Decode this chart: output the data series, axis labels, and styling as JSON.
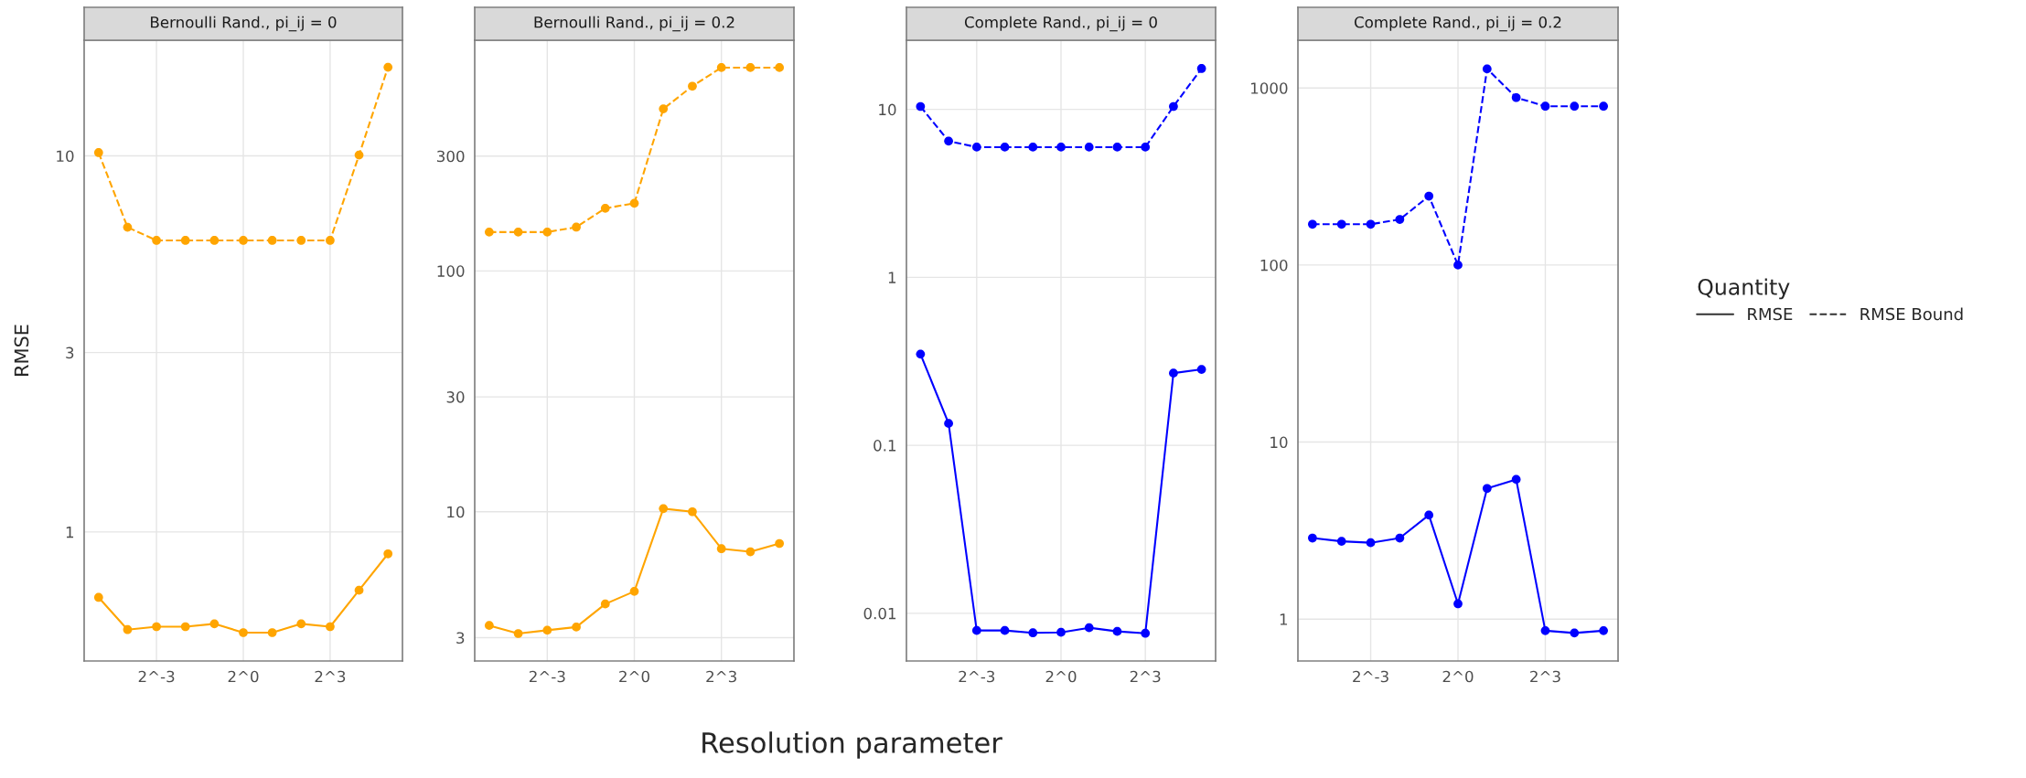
{
  "chart_data": [
    {
      "type": "line",
      "title": "Bernoulli Rand., pi_ij = 0",
      "ylabel": "RMSE",
      "log": "xy",
      "grid": true,
      "marker": "circle",
      "legend": false,
      "x": [
        0.03125,
        0.0625,
        0.125,
        0.25,
        0.5,
        1,
        2,
        4,
        8,
        16,
        32
      ],
      "xlim": [
        0.0221,
        45.25
      ],
      "xticks": [
        {
          "value": 0.125,
          "label": "2^-3"
        },
        {
          "value": 1,
          "label": "2^0"
        },
        {
          "value": 8,
          "label": "2^3"
        }
      ],
      "ylim": [
        0.454,
        20.3
      ],
      "yticks": [
        1,
        3,
        10
      ],
      "series": [
        {
          "color": "#ffa500",
          "line_style": "solid",
          "values": [
            0.67,
            0.55,
            0.56,
            0.56,
            0.57,
            0.54,
            0.54,
            0.57,
            0.56,
            0.7,
            0.875
          ]
        },
        {
          "color": "#ffa500",
          "line_style": "dashed",
          "values": [
            10.2,
            6.46,
            5.96,
            5.96,
            5.96,
            5.96,
            5.96,
            5.96,
            5.96,
            10.05,
            17.2
          ]
        }
      ]
    },
    {
      "type": "line",
      "title": "Bernoulli Rand., pi_ij = 0.2",
      "log": "xy",
      "grid": true,
      "marker": "circle",
      "legend": false,
      "x": [
        0.03125,
        0.0625,
        0.125,
        0.25,
        0.5,
        1,
        2,
        4,
        8,
        16,
        32
      ],
      "xlim": [
        0.0221,
        45.25
      ],
      "xticks": [
        {
          "value": 0.125,
          "label": "2^-3"
        },
        {
          "value": 1,
          "label": "2^0"
        },
        {
          "value": 8,
          "label": "2^3"
        }
      ],
      "ylim": [
        2.4,
        908
      ],
      "yticks": [
        3,
        10,
        30,
        100,
        300
      ],
      "series": [
        {
          "color": "#ffa500",
          "line_style": "solid",
          "values": [
            3.37,
            3.12,
            3.22,
            3.32,
            4.14,
            4.67,
            10.3,
            10.0,
            7.02,
            6.82,
            7.38
          ]
        },
        {
          "color": "#ffa500",
          "line_style": "dashed",
          "values": [
            145,
            145,
            145,
            152,
            182,
            191,
            471,
            585,
            699,
            699,
            699
          ]
        }
      ]
    },
    {
      "type": "line",
      "title": "Complete Rand., pi_ij = 0",
      "xlabel": "Resolution parameter",
      "log": "xy",
      "grid": true,
      "marker": "circle",
      "legend": false,
      "x": [
        0.03125,
        0.0625,
        0.125,
        0.25,
        0.5,
        1,
        2,
        4,
        8,
        16,
        32
      ],
      "xlim": [
        0.0221,
        45.25
      ],
      "xticks": [
        {
          "value": 0.125,
          "label": "2^-3"
        },
        {
          "value": 1,
          "label": "2^0"
        },
        {
          "value": 8,
          "label": "2^3"
        }
      ],
      "ylim": [
        0.0052,
        25.8
      ],
      "yticks": [
        0.01,
        0.1,
        1,
        10
      ],
      "series": [
        {
          "color": "#0000ff",
          "line_style": "solid",
          "values": [
            0.349,
            0.135,
            0.0079,
            0.0079,
            0.00765,
            0.0077,
            0.0082,
            0.0078,
            0.0076,
            0.269,
            0.283
          ]
        },
        {
          "color": "#0000ff",
          "line_style": "dashed",
          "values": [
            10.4,
            6.47,
            5.96,
            5.96,
            5.96,
            5.96,
            5.96,
            5.96,
            5.96,
            10.4,
            17.5
          ]
        }
      ]
    },
    {
      "type": "line",
      "title": "Complete Rand., pi_ij = 0.2",
      "log": "xy",
      "grid": true,
      "marker": "circle",
      "legend": "right",
      "legend_title": "Quantity",
      "x": [
        0.03125,
        0.0625,
        0.125,
        0.25,
        0.5,
        1,
        2,
        4,
        8,
        16,
        32
      ],
      "xlim": [
        0.0221,
        45.25
      ],
      "xticks": [
        {
          "value": 0.125,
          "label": "2^-3"
        },
        {
          "value": 1,
          "label": "2^0"
        },
        {
          "value": 8,
          "label": "2^3"
        }
      ],
      "ylim": [
        0.58,
        1862
      ],
      "yticks": [
        1,
        10,
        100,
        1000
      ],
      "series": [
        {
          "name": "RMSE",
          "color": "#0000ff",
          "line_style": "solid",
          "values": [
            2.87,
            2.75,
            2.7,
            2.87,
            3.87,
            1.22,
            5.47,
            6.15,
            0.86,
            0.835,
            0.86
          ]
        },
        {
          "name": "RMSE Bound",
          "color": "#0000ff",
          "line_style": "dashed",
          "values": [
            170,
            170,
            170,
            181,
            245,
            100,
            1282,
            883,
            789,
            789,
            789
          ]
        }
      ]
    }
  ]
}
